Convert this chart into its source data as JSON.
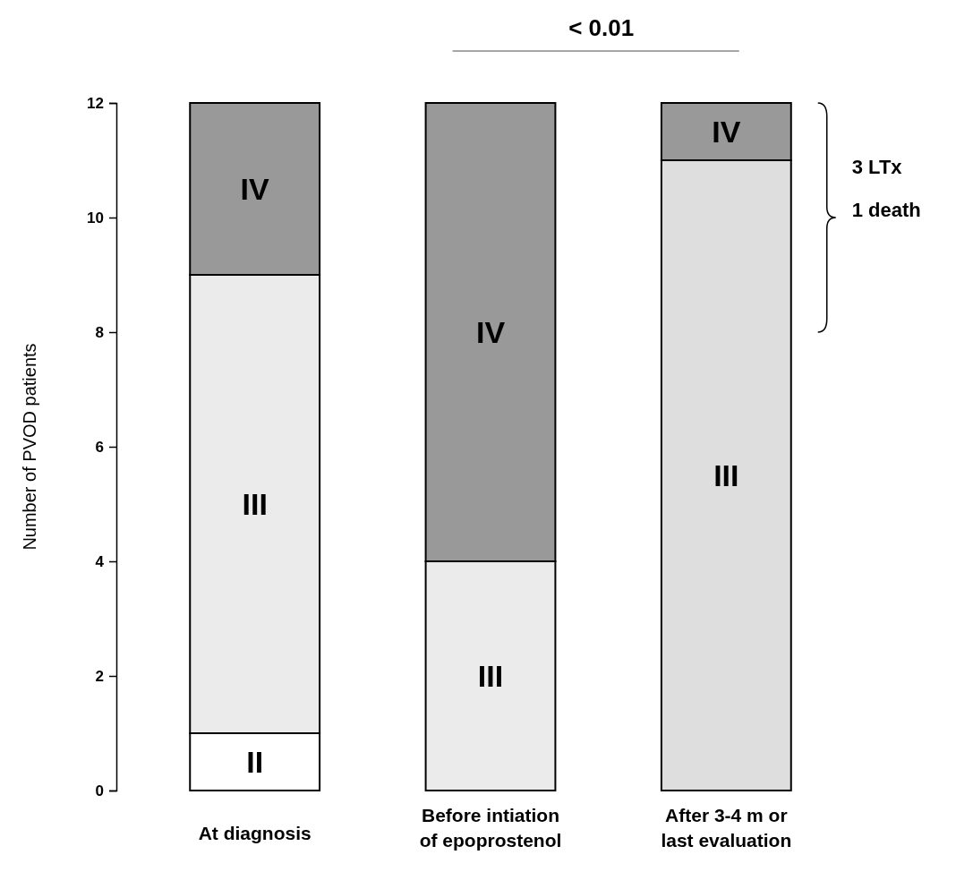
{
  "chart_data": {
    "type": "bar",
    "stacked": true,
    "ylabel": "Number of PVOD patients",
    "categories": [
      "At diagnosis",
      "Before intiation of epoprostenol",
      "After 3-4 m or last evaluation"
    ],
    "series": [
      {
        "name": "II",
        "color": "#ffffff",
        "values": [
          1,
          0,
          0
        ]
      },
      {
        "name": "III",
        "colors": [
          "#ebebeb",
          "#ebebeb",
          "#dedede"
        ],
        "values": [
          8,
          4,
          11
        ]
      },
      {
        "name": "IV",
        "color": "#999999",
        "values": [
          3,
          8,
          1
        ]
      }
    ],
    "ylim": [
      0,
      12
    ],
    "yticks": [
      0,
      2,
      4,
      6,
      8,
      10,
      12
    ],
    "grid": false,
    "legend": false,
    "annotations": [
      "< 0.01",
      "3 LTx",
      "1 death"
    ]
  }
}
